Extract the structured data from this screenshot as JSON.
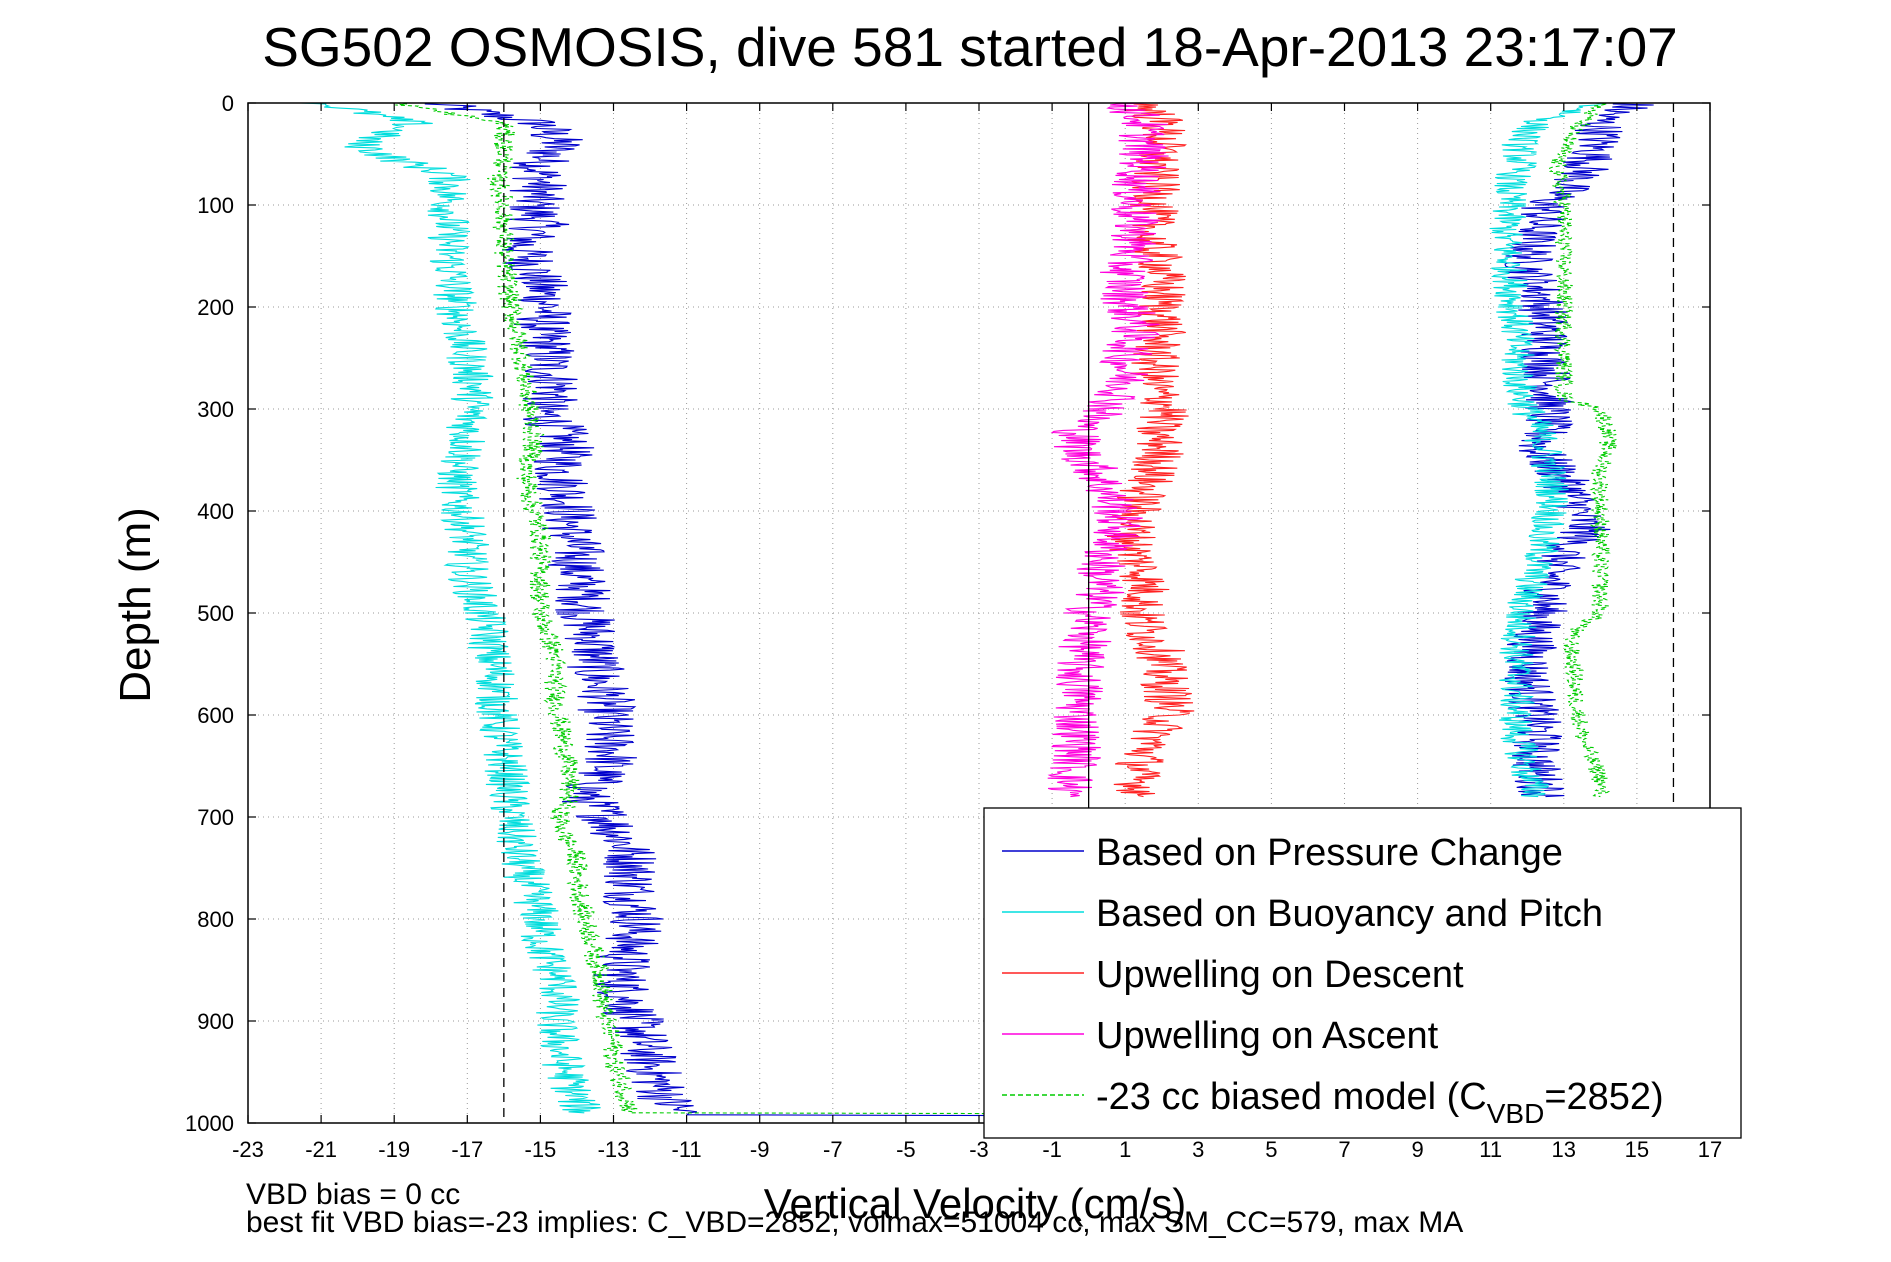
{
  "chart_data": {
    "type": "line",
    "title": "SG502 OSMOSIS, dive 581 started 18-Apr-2013 23:17:07",
    "xlabel": "Vertical Velocity (cm/s)",
    "ylabel": "Depth (m)",
    "xlim": [
      -23,
      17
    ],
    "ylim": [
      0,
      1000
    ],
    "y_reversed": true,
    "grid": true,
    "grid_style": "dotted",
    "x_ticks": [
      -23,
      -21,
      -19,
      -17,
      -15,
      -13,
      -11,
      -9,
      -7,
      -5,
      -3,
      -1,
      1,
      3,
      5,
      7,
      9,
      11,
      13,
      15,
      17
    ],
    "y_ticks": [
      0,
      100,
      200,
      300,
      400,
      500,
      600,
      700,
      800,
      900,
      1000
    ],
    "reference_lines": [
      {
        "orientation": "vertical",
        "x": -16,
        "style": "dashed",
        "color": "#000000"
      },
      {
        "orientation": "vertical",
        "x": 0,
        "style": "solid",
        "color": "#000000"
      },
      {
        "orientation": "vertical",
        "x": 16,
        "style": "dashed",
        "color": "#000000"
      }
    ],
    "legend_position": "bottom-right",
    "legend": [
      {
        "label": "Based on Pressure Change",
        "color": "#0000cc",
        "style": "solid"
      },
      {
        "label": "Based on Buoyancy and Pitch",
        "color": "#00dddd",
        "style": "solid"
      },
      {
        "label": "Upwelling on Descent",
        "color": "#ff2222",
        "style": "solid"
      },
      {
        "label": "Upwelling on Ascent",
        "color": "#ff00dd",
        "style": "solid"
      },
      {
        "label": "-23 cc biased model (C",
        "sub": "VBD",
        "suffix": "=2852)",
        "color": "#00cc00",
        "style": "dashed"
      }
    ],
    "series": [
      {
        "name": "Based on Pressure Change",
        "color": "#0000cc",
        "segments": [
          {
            "depth": [
              0,
              20,
              40,
              60,
              80,
              100,
              120,
              140,
              160,
              180,
              200,
              220,
              240,
              260,
              280,
              300,
              320,
              340,
              360,
              380,
              400,
              420,
              440,
              460,
              480,
              500,
              520,
              540,
              560,
              580,
              600,
              620,
              640,
              660,
              680,
              700,
              720,
              740,
              760,
              780,
              800,
              820,
              840,
              860,
              880,
              900,
              920,
              940,
              960,
              980,
              992
            ],
            "velocity": [
              -18,
              -15,
              -14.5,
              -15,
              -15,
              -15.2,
              -15,
              -15.5,
              -15.2,
              -15,
              -14.8,
              -15,
              -14.8,
              -14.8,
              -14.5,
              -15,
              -14.5,
              -14.3,
              -14.5,
              -14.3,
              -14.2,
              -14.2,
              -14,
              -14,
              -13.8,
              -13.8,
              -13.6,
              -13.5,
              -13.5,
              -13.2,
              -13.2,
              -13.2,
              -13,
              -13.4,
              -13.8,
              -13.2,
              -12.8,
              -12.5,
              -12.5,
              -12.5,
              -12.3,
              -12.5,
              -12.7,
              -12.8,
              -12.6,
              -12.4,
              -12.2,
              -12,
              -11.8,
              -11.5,
              -11
            ],
            "jitter": 0.8
          },
          {
            "depth": [
              992,
              994
            ],
            "velocity": [
              -11,
              14
            ],
            "jitter": 0
          },
          {
            "depth": [
              0,
              15,
              30,
              50,
              70,
              100,
              130,
              160,
              190,
              220,
              250,
              280,
              300,
              320,
              340,
              360,
              380,
              400,
              420,
              440,
              460,
              480,
              500,
              520,
              540,
              560,
              580,
              600,
              620,
              640,
              660,
              680
            ],
            "velocity": [
              15,
              14,
              14,
              13.8,
              13.5,
              12.5,
              12.2,
              12,
              12.4,
              12.5,
              12.5,
              12.6,
              12.6,
              12.5,
              12.3,
              12.8,
              13.2,
              13.4,
              13.6,
              13,
              12.7,
              12.6,
              12.4,
              12.2,
              12.1,
              12,
              12.1,
              12.2,
              12.3,
              12.2,
              12.3,
              12.5
            ],
            "jitter": 0.7
          }
        ]
      },
      {
        "name": "Based on Buoyancy and Pitch",
        "color": "#00dddd",
        "segments": [
          {
            "depth": [
              0,
              20,
              40,
              55,
              70,
              100,
              150,
              200,
              250,
              280,
              300,
              320,
              340,
              360,
              380,
              400,
              420,
              440,
              460,
              480,
              500,
              520,
              540,
              560,
              580,
              600,
              620,
              640,
              660,
              680,
              700,
              720,
              740,
              760,
              780,
              800,
              820,
              840,
              860,
              880,
              900,
              920,
              940,
              960,
              980,
              990
            ],
            "velocity": [
              -21,
              -18.5,
              -20,
              -19,
              -17.5,
              -17.5,
              -17.5,
              -17.3,
              -17,
              -16.8,
              -16.9,
              -17,
              -17,
              -17.3,
              -17.3,
              -17.2,
              -17,
              -17,
              -17,
              -16.8,
              -16.6,
              -16.4,
              -16.4,
              -16.2,
              -16.2,
              -16.2,
              -16.1,
              -16,
              -15.9,
              -15.9,
              -15.8,
              -15.7,
              -15.6,
              -15.4,
              -15.2,
              -15,
              -15,
              -14.8,
              -14.5,
              -14.5,
              -14.6,
              -14.5,
              -14.4,
              -14.2,
              -14,
              -13.8
            ],
            "jitter": 0.6
          },
          {
            "depth": [
              0,
              20,
              40,
              60,
              80,
              100,
              130,
              160,
              190,
              220,
              250,
              280,
              300,
              320,
              340,
              360,
              380,
              400,
              420,
              440,
              460,
              480,
              500,
              520,
              540,
              560,
              580,
              600,
              620,
              640,
              660,
              680
            ],
            "velocity": [
              14,
              12.2,
              11.8,
              11.8,
              11.5,
              11.5,
              11.4,
              11.5,
              11.6,
              11.7,
              11.7,
              11.8,
              12,
              12.3,
              12.5,
              12.6,
              12.7,
              12.7,
              12.4,
              12.4,
              12.2,
              12,
              11.8,
              11.8,
              11.7,
              11.7,
              11.7,
              11.7,
              11.7,
              11.9,
              12,
              12.3
            ],
            "jitter": 0.5
          }
        ]
      },
      {
        "name": "Upwelling on Descent",
        "color": "#ff2222",
        "segments": [
          {
            "depth": [
              0,
              20,
              40,
              60,
              80,
              100,
              130,
              160,
              190,
              220,
              250,
              280,
              300,
              320,
              340,
              360,
              380,
              400,
              420,
              440,
              460,
              480,
              500,
              520,
              540,
              560,
              580,
              600,
              620,
              640,
              660,
              680
            ],
            "velocity": [
              1.5,
              2,
              2,
              1.8,
              1.8,
              1.8,
              1.6,
              2,
              2,
              2,
              1.8,
              1.8,
              2.2,
              1.8,
              2,
              1.8,
              1.5,
              1.3,
              1.2,
              1.2,
              1.5,
              1.6,
              1.4,
              1.6,
              2,
              2,
              2.2,
              2.2,
              1.8,
              1.5,
              1.3,
              1.5
            ],
            "jitter": 0.7
          }
        ]
      },
      {
        "name": "Upwelling on Ascent",
        "color": "#ff00dd",
        "segments": [
          {
            "depth": [
              0,
              20,
              40,
              60,
              80,
              100,
              130,
              160,
              190,
              220,
              250,
              280,
              300,
              320,
              340,
              360,
              380,
              400,
              420,
              440,
              460,
              480,
              500,
              520,
              540,
              560,
              580,
              600,
              620,
              640,
              660,
              680
            ],
            "velocity": [
              1,
              1.5,
              1.5,
              1.5,
              1.3,
              1.2,
              1.3,
              1,
              1,
              1.3,
              1,
              1,
              0.5,
              -0.3,
              -0.3,
              0.2,
              0.5,
              0.8,
              0.8,
              0.5,
              0.3,
              0.3,
              0,
              0,
              -0.2,
              -0.3,
              -0.2,
              -0.3,
              -0.3,
              -0.3,
              -0.5,
              -0.5
            ],
            "jitter": 0.7
          }
        ]
      },
      {
        "name": "-23 cc biased model (CVBD=2852)",
        "color": "#00cc00",
        "dashed": true,
        "segments": [
          {
            "depth": [
              0,
              20,
              40,
              60,
              70,
              100,
              150,
              200,
              250,
              300,
              320,
              340,
              360,
              380,
              400,
              420,
              440,
              460,
              480,
              500,
              520,
              540,
              560,
              580,
              600,
              620,
              640,
              660,
              680,
              700,
              720,
              740,
              760,
              780,
              800,
              820,
              840,
              860,
              880,
              900,
              920,
              940,
              960,
              980,
              990
            ],
            "velocity": [
              -19,
              -16,
              -16,
              -16,
              -16.2,
              -16,
              -16,
              -15.8,
              -15.5,
              -15.3,
              -15.2,
              -15.2,
              -15.4,
              -15.3,
              -15.2,
              -15,
              -15,
              -15,
              -15,
              -15,
              -14.8,
              -14.6,
              -14.6,
              -14.6,
              -14.5,
              -14.4,
              -14.3,
              -14.2,
              -14.2,
              -14.5,
              -14.3,
              -14,
              -14,
              -13.9,
              -13.8,
              -13.6,
              -13.5,
              -13.3,
              -13.3,
              -13.2,
              -13,
              -13,
              -12.8,
              -12.6,
              -12.5
            ],
            "jitter": 0.3
          },
          {
            "depth": [
              990,
              992
            ],
            "velocity": [
              -12.5,
              14
            ],
            "jitter": 0
          },
          {
            "depth": [
              0,
              30,
              60,
              100,
              150,
              200,
              250,
              290,
              300,
              320,
              340,
              360,
              380,
              400,
              420,
              440,
              460,
              480,
              500,
              520,
              540,
              560,
              580,
              600,
              620,
              640,
              660,
              680
            ],
            "velocity": [
              14,
              13.2,
              12.8,
              13,
              13,
              13,
              13,
              13,
              14,
              14.2,
              14.2,
              14,
              14,
              14,
              14,
              14,
              14,
              14,
              14,
              13.2,
              13.2,
              13.3,
              13.3,
              13.4,
              13.5,
              13.7,
              14,
              14
            ],
            "jitter": 0.25
          }
        ]
      }
    ]
  },
  "footnotes": {
    "line1": "VBD bias = 0 cc",
    "line2": "best fit VBD bias=-23 implies: C_VBD=2852, volmax=51004 cc, max SM_CC=579, max MA"
  }
}
